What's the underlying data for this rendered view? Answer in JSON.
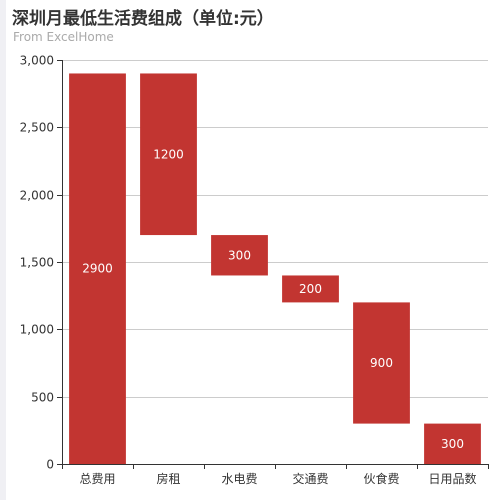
{
  "chart_data": {
    "type": "bar",
    "title": "深圳月最低生活费组成（单位:元）",
    "subtitle": "From ExcelHome",
    "categories": [
      "总费用",
      "房租",
      "水电费",
      "交通费",
      "伙食费",
      "日用品数"
    ],
    "values": [
      2900,
      1200,
      300,
      200,
      900,
      300
    ],
    "bases": [
      0,
      1700,
      1400,
      1200,
      300,
      0
    ],
    "value_labels": [
      "2900",
      "1200",
      "300",
      "200",
      "900",
      "300"
    ],
    "y_ticks": [
      0,
      500,
      1000,
      1500,
      2000,
      2500,
      3000
    ],
    "y_tick_labels": [
      "0",
      "500",
      "1,000",
      "1,500",
      "2,000",
      "2,500",
      "3,000"
    ],
    "ylim": [
      0,
      3000
    ],
    "xlabel": "",
    "ylabel": "",
    "grid": true,
    "bar_color": "#c23531"
  }
}
